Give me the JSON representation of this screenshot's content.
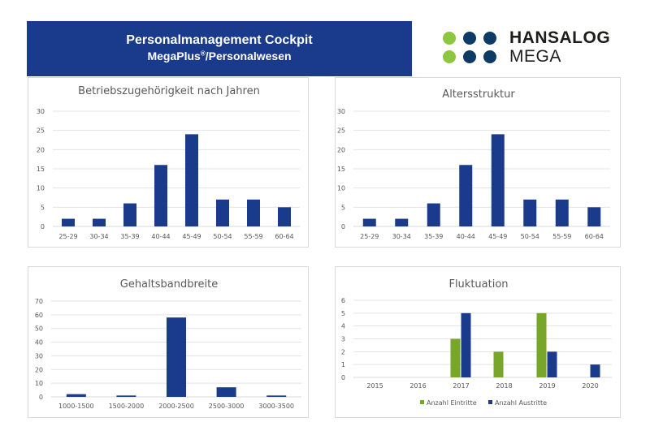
{
  "header": {
    "title": "Personalmanagement Cockpit",
    "subtitle_main": "MegaPlus",
    "subtitle_mark": "®",
    "subtitle_rest": "/Personalwesen"
  },
  "logo": {
    "line1": "HANSALOG",
    "line2": "MEGA",
    "colors": {
      "green": "#8dc63f",
      "navy": "#0d3b66"
    }
  },
  "colors": {
    "bar": "#1a3b8c",
    "green": "#77a62a",
    "grid": "#e3e3e3",
    "axis": "#d9d9d9"
  },
  "chart_data": [
    {
      "type": "bar",
      "title": "Betriebszugehörigkeit nach Jahren",
      "categories": [
        "25-29",
        "30-34",
        "35-39",
        "40-44",
        "45-49",
        "50-54",
        "55-59",
        "60-64"
      ],
      "values": [
        2,
        2,
        6,
        16,
        24,
        7,
        7,
        5
      ],
      "ylim": [
        0,
        30
      ],
      "yticks": [
        0,
        5,
        10,
        15,
        20,
        25,
        30
      ],
      "grid": true,
      "xlabel": "",
      "ylabel": ""
    },
    {
      "type": "bar",
      "title": "Altersstruktur",
      "categories": [
        "25-29",
        "30-34",
        "35-39",
        "40-44",
        "45-49",
        "50-54",
        "55-59",
        "60-64"
      ],
      "values": [
        2,
        2,
        6,
        16,
        24,
        7,
        7,
        5
      ],
      "ylim": [
        0,
        30
      ],
      "yticks": [
        0,
        5,
        10,
        15,
        20,
        25,
        30
      ],
      "grid": true,
      "xlabel": "",
      "ylabel": ""
    },
    {
      "type": "bar",
      "title": "Gehaltsbandbreite",
      "categories": [
        "1000-1500",
        "1500-2000",
        "2000-2500",
        "2500-3000",
        "3000-3500"
      ],
      "values": [
        2,
        1,
        58,
        7,
        1
      ],
      "ylim": [
        0,
        70
      ],
      "yticks": [
        0,
        10,
        20,
        30,
        40,
        50,
        60,
        70
      ],
      "grid": true,
      "xlabel": "",
      "ylabel": ""
    },
    {
      "type": "bar",
      "title": "Fluktuation",
      "categories": [
        "2015",
        "2016",
        "2017",
        "2018",
        "2019",
        "2020"
      ],
      "series": [
        {
          "name": "Anzahl Eintritte",
          "values": [
            0,
            0,
            3,
            2,
            5,
            0
          ],
          "color": "green"
        },
        {
          "name": "Anzahl Austritte",
          "values": [
            0,
            0,
            5,
            0,
            2,
            1
          ],
          "color": "bar"
        }
      ],
      "ylim": [
        0,
        6
      ],
      "yticks": [
        0,
        1,
        2,
        3,
        4,
        5,
        6
      ],
      "grid": true,
      "legend": "bottom",
      "xlabel": "",
      "ylabel": ""
    }
  ]
}
